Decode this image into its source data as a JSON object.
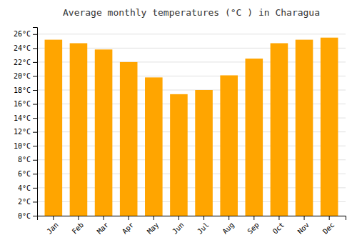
{
  "chart_data": {
    "type": "bar",
    "title": "Average monthly temperatures (°C ) in Charagua",
    "categories": [
      "Jan",
      "Feb",
      "Mar",
      "Apr",
      "May",
      "Jun",
      "Jul",
      "Aug",
      "Sep",
      "Oct",
      "Nov",
      "Dec"
    ],
    "values": [
      25.2,
      24.7,
      23.8,
      22.0,
      19.8,
      17.4,
      18.0,
      20.1,
      22.5,
      24.7,
      25.2,
      25.5
    ],
    "color": "#FFA500",
    "ylim": [
      0,
      27
    ],
    "yticks": [
      {
        "value": 0,
        "label": "0°C"
      },
      {
        "value": 2,
        "label": "2°C"
      },
      {
        "value": 4,
        "label": "4°C"
      },
      {
        "value": 6,
        "label": "6°C"
      },
      {
        "value": 8,
        "label": "8°C"
      },
      {
        "value": 10,
        "label": "10°C"
      },
      {
        "value": 12,
        "label": "12°C"
      },
      {
        "value": 14,
        "label": "14°C"
      },
      {
        "value": 16,
        "label": "16°C"
      },
      {
        "value": 18,
        "label": "18°C"
      },
      {
        "value": 20,
        "label": "20°C"
      },
      {
        "value": 22,
        "label": "22°C"
      },
      {
        "value": 24,
        "label": "24°C"
      },
      {
        "value": 26,
        "label": "26°C"
      }
    ],
    "grid": true
  }
}
